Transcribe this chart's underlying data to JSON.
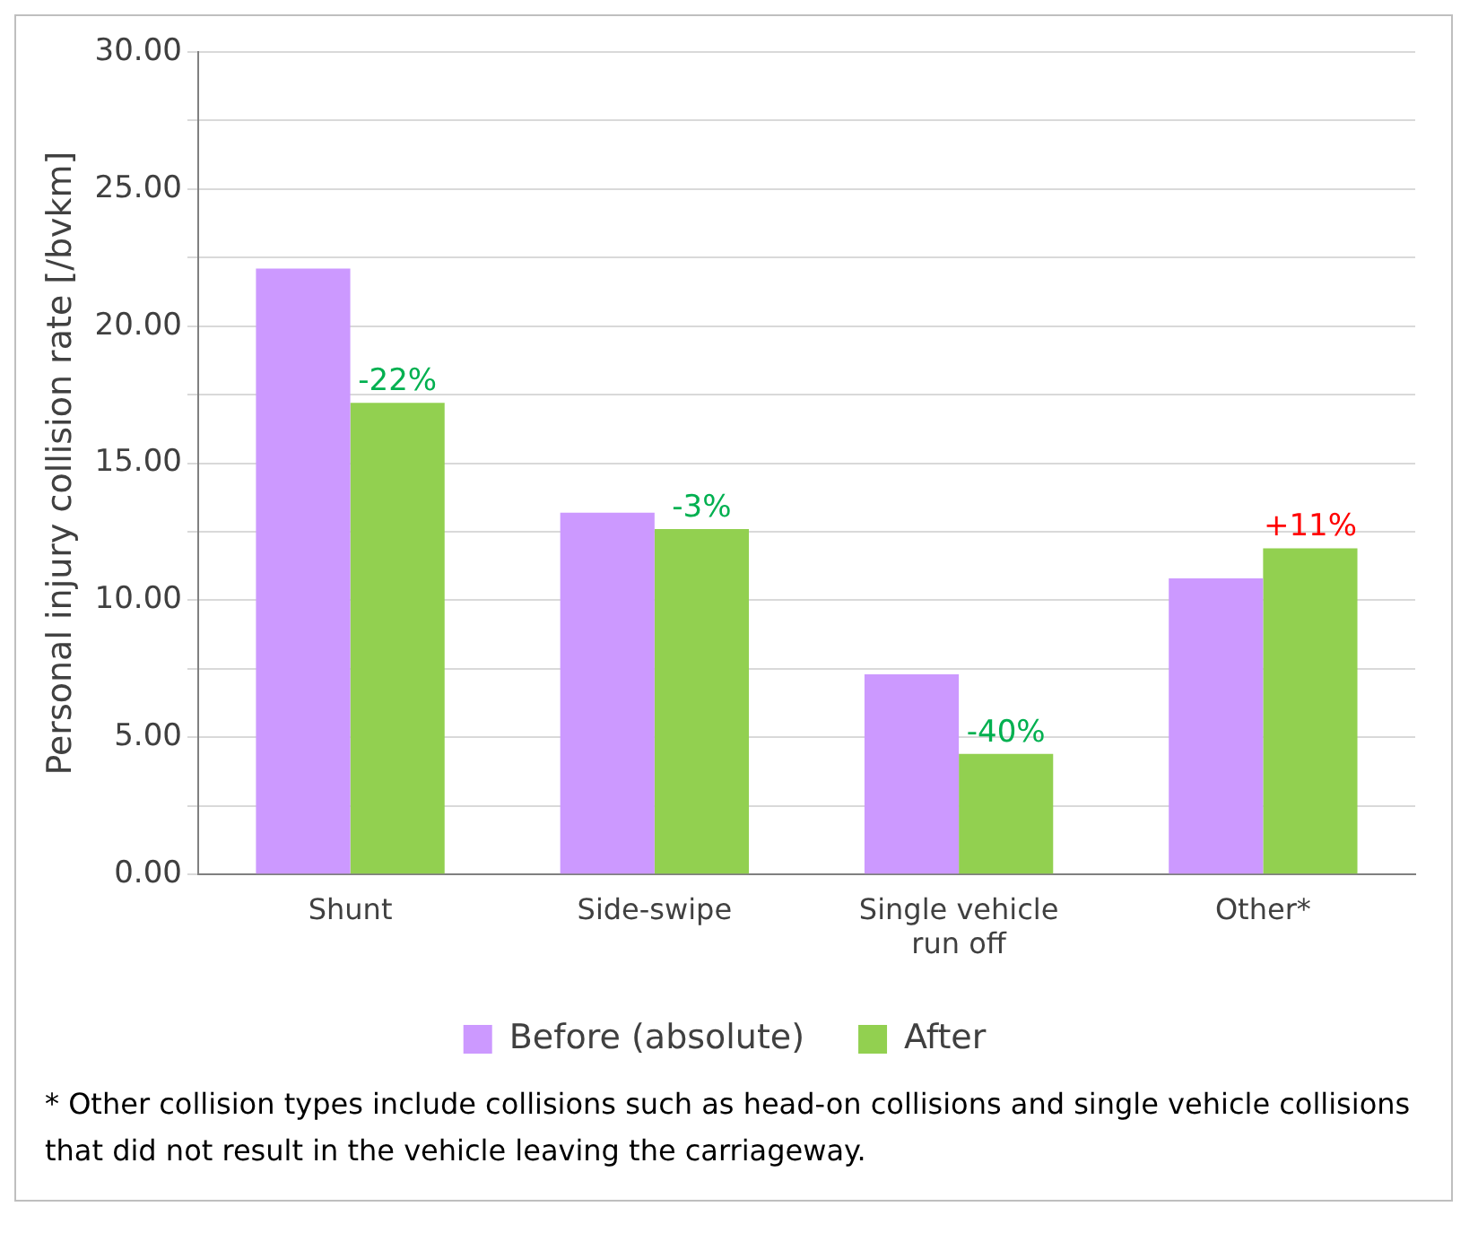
{
  "chart_data": {
    "type": "bar",
    "ylabel": "Personal injury collision rate [/bvkm]",
    "categories": [
      "Shunt",
      "Side-swipe",
      "Single vehicle\nrun off",
      "Other*"
    ],
    "series": [
      {
        "name": "Before (absolute)",
        "color": "#cc99ff",
        "values": [
          22.1,
          13.2,
          7.3,
          10.8
        ]
      },
      {
        "name": "After",
        "color": "#92d050",
        "values": [
          17.2,
          12.6,
          4.4,
          11.9
        ]
      }
    ],
    "ylim": [
      0,
      30
    ],
    "yticks": [
      {
        "value": 0,
        "label": "0.00"
      },
      {
        "value": 2.5,
        "label": null
      },
      {
        "value": 5,
        "label": "5.00"
      },
      {
        "value": 7.5,
        "label": null
      },
      {
        "value": 10,
        "label": "10.00"
      },
      {
        "value": 12.5,
        "label": null
      },
      {
        "value": 15,
        "label": "15.00"
      },
      {
        "value": 17.5,
        "label": null
      },
      {
        "value": 20,
        "label": "20.00"
      },
      {
        "value": 22.5,
        "label": null
      },
      {
        "value": 25,
        "label": "25.00"
      },
      {
        "value": 27.5,
        "label": null
      },
      {
        "value": 30,
        "label": "30.00"
      }
    ],
    "grid": "y",
    "legend": "bottom",
    "annotations": [
      {
        "text": "-22%",
        "x": "Shunt",
        "y": 17.2
      },
      {
        "text": "-3%",
        "x": "Side-swipe",
        "y": 12.6
      },
      {
        "text": "-40%",
        "x": "Single vehicle\nrun off",
        "y": 4.4
      },
      {
        "text": "+11%",
        "x": "Other*",
        "y": 11.9
      },
      "* Other collision types include collisions such as head-on collisions and single vehicle collisions that did not result in the vehicle leaving the carriageway."
    ]
  }
}
